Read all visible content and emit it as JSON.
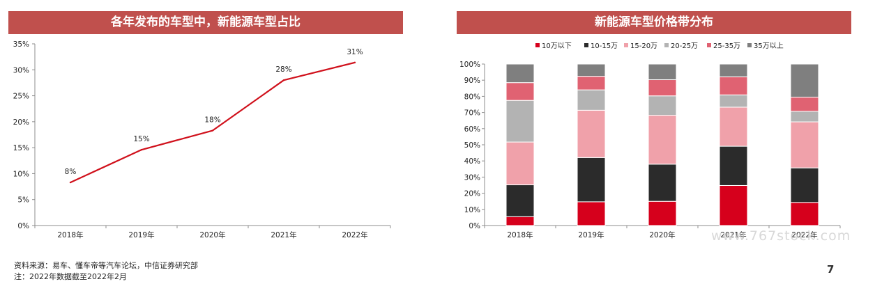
{
  "notes": {
    "source": "资料来源：易车、懂车帝等汽车论坛，中信证券研究部",
    "remark": "注：2022年数据截至2022年2月"
  },
  "page_number": "7",
  "watermark": "www.767stock.com",
  "colors": {
    "banner": "#c0504d",
    "line": "#d0101b",
    "series": [
      "#d6001c",
      "#2b2b2b",
      "#f0a1aa",
      "#b3b3b3",
      "#e06272",
      "#7f7f7f"
    ]
  },
  "chart_data": [
    {
      "type": "line",
      "title": "各年发布的车型中，新能源车型占比",
      "x": [
        "2018年",
        "2019年",
        "2020年",
        "2021年",
        "2022年"
      ],
      "values": [
        8.3,
        14.6,
        18.3,
        28.0,
        31.4
      ],
      "data_labels": [
        "8%",
        "15%",
        "18%",
        "28%",
        "31%"
      ],
      "ylim": [
        0,
        35
      ],
      "yticks": [
        "0%",
        "5%",
        "10%",
        "15%",
        "20%",
        "25%",
        "30%",
        "35%"
      ],
      "grid": false,
      "legend": "none"
    },
    {
      "type": "bar",
      "stacked": true,
      "title": "新能源车型价格带分布",
      "categories": [
        "2018年",
        "2019年",
        "2020年",
        "2021年",
        "2022年"
      ],
      "series": [
        {
          "name": "10万以下",
          "values": [
            5.5,
            14.7,
            15.0,
            24.8,
            14.3
          ]
        },
        {
          "name": "10-15万",
          "values": [
            19.7,
            27.4,
            23.0,
            24.3,
            21.4
          ]
        },
        {
          "name": "15-20万",
          "values": [
            26.5,
            29.3,
            30.3,
            24.2,
            28.5
          ]
        },
        {
          "name": "20-25万",
          "values": [
            25.8,
            12.6,
            12.0,
            7.6,
            6.5
          ]
        },
        {
          "name": "25-35万",
          "values": [
            11.0,
            8.4,
            10.0,
            11.2,
            8.8
          ]
        },
        {
          "name": "35万以上",
          "values": [
            11.5,
            7.6,
            9.7,
            7.9,
            20.5
          ]
        }
      ],
      "ylim": [
        0,
        100
      ],
      "yticks": [
        "0%",
        "10%",
        "20%",
        "30%",
        "40%",
        "50%",
        "60%",
        "70%",
        "80%",
        "90%",
        "100%"
      ],
      "grid": false,
      "legend": "top"
    }
  ]
}
